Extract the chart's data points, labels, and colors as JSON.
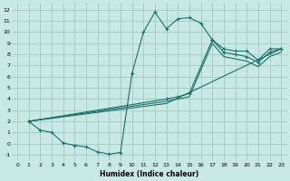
{
  "xlabel": "Humidex (Indice chaleur)",
  "bg_color": "#c8e8e4",
  "grid_color": "#a0c8c4",
  "line_color": "#1a7068",
  "xlim": [
    -0.5,
    23.5
  ],
  "ylim": [
    -1.6,
    12.6
  ],
  "xticks": [
    0,
    1,
    2,
    3,
    4,
    5,
    6,
    7,
    8,
    9,
    10,
    11,
    12,
    13,
    14,
    15,
    16,
    17,
    18,
    19,
    20,
    21,
    22,
    23
  ],
  "yticks": [
    -1,
    0,
    1,
    2,
    3,
    4,
    5,
    6,
    7,
    8,
    9,
    10,
    11,
    12
  ],
  "line_main_x": [
    1,
    2,
    3,
    4,
    5,
    6,
    7,
    8,
    9,
    10,
    11,
    12,
    13,
    14,
    15,
    16,
    17,
    18,
    19,
    20,
    21,
    22,
    23
  ],
  "line_main_y": [
    2.0,
    1.2,
    1.0,
    0.05,
    -0.15,
    -0.3,
    -0.75,
    -0.95,
    -0.8,
    6.3,
    10.0,
    11.8,
    10.3,
    11.2,
    11.3,
    10.8,
    9.3,
    8.5,
    8.3,
    8.3,
    7.5,
    8.5,
    8.5
  ],
  "line2_x": [
    1,
    13,
    14,
    15,
    17,
    18,
    19,
    20,
    21,
    22,
    23
  ],
  "line2_y": [
    2.0,
    4.0,
    4.2,
    4.5,
    9.3,
    8.2,
    8.0,
    7.8,
    7.3,
    8.2,
    8.5
  ],
  "line3_x": [
    1,
    13,
    14,
    15,
    17,
    18,
    19,
    20,
    21,
    22,
    23
  ],
  "line3_y": [
    2.0,
    3.8,
    4.0,
    4.2,
    9.0,
    7.8,
    7.6,
    7.4,
    6.9,
    7.8,
    8.2
  ],
  "line4_x": [
    1,
    13,
    23
  ],
  "line4_y": [
    2.0,
    3.6,
    8.5
  ]
}
